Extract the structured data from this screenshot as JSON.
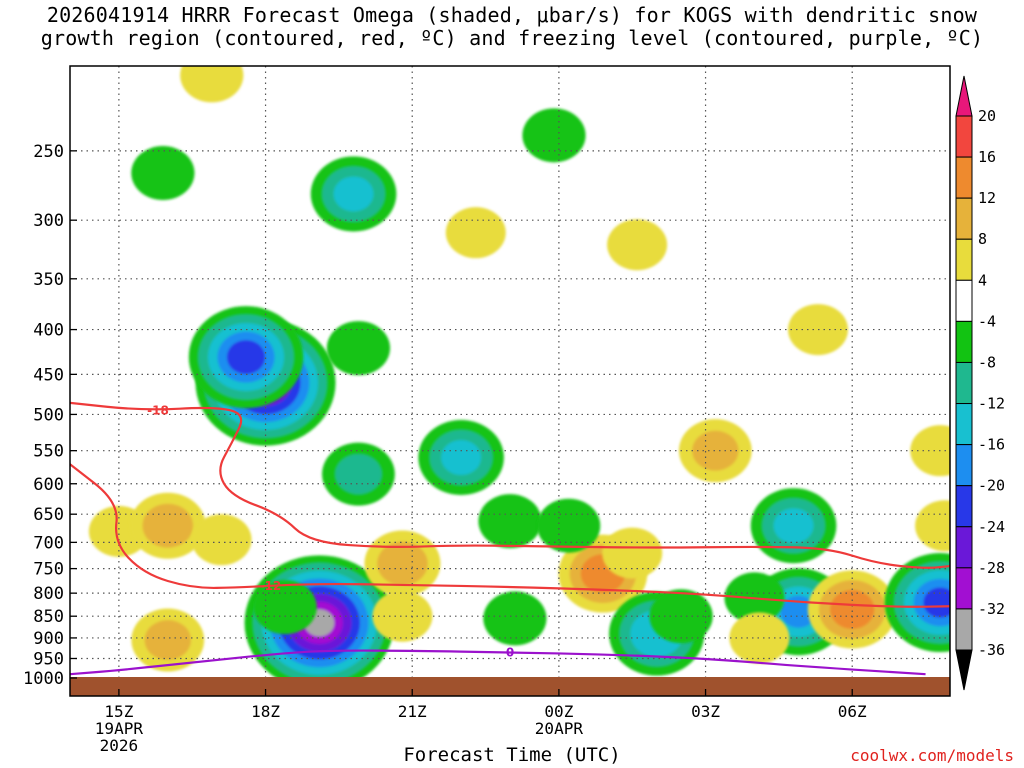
{
  "chart_data": {
    "type": "heatmap",
    "title_lines": [
      "2026041914 HRRR Forecast Omega (shaded, μbar/s) for KOGS with dendritic snow",
      "growth region (contoured, red, ºC) and freezing level (contoured, purple, ºC)"
    ],
    "xlabel": "Forecast Time (UTC)",
    "ylabel": "",
    "credit": "coolwx.com/models",
    "y_scale": "log-pressure",
    "ylim": [
      1000,
      200
    ],
    "y_ticks": [
      250,
      300,
      350,
      400,
      450,
      500,
      550,
      600,
      650,
      700,
      750,
      800,
      850,
      900,
      950,
      1000
    ],
    "xlim": [
      14,
      32
    ],
    "x_ticks": [
      {
        "x": 15,
        "label": [
          "15Z",
          "19APR",
          "2026"
        ]
      },
      {
        "x": 18,
        "label": [
          "18Z"
        ]
      },
      {
        "x": 21,
        "label": [
          "21Z"
        ]
      },
      {
        "x": 24,
        "label": [
          "00Z",
          "20APR"
        ]
      },
      {
        "x": 27,
        "label": [
          "03Z"
        ]
      },
      {
        "x": 30,
        "label": [
          "06Z"
        ]
      }
    ],
    "grid": true,
    "colorbar": {
      "labels": [
        "20",
        "16",
        "12",
        "8",
        "4",
        "-4",
        "-8",
        "-12",
        "-16",
        "-20",
        "-24",
        "-28",
        "-32",
        "-36"
      ],
      "bands": [
        {
          "from": 20,
          "to": 24,
          "color": "#e8177a"
        },
        {
          "from": 16,
          "to": 20,
          "color": "#f2463e"
        },
        {
          "from": 12,
          "to": 16,
          "color": "#ee8a2e"
        },
        {
          "from": 8,
          "to": 12,
          "color": "#e6b23a"
        },
        {
          "from": 4,
          "to": 8,
          "color": "#e8dc3c"
        },
        {
          "from": -4,
          "to": 4,
          "color": "#ffffff"
        },
        {
          "from": -8,
          "to": -4,
          "color": "#12c312"
        },
        {
          "from": -12,
          "to": -8,
          "color": "#1fb88f"
        },
        {
          "from": -16,
          "to": -12,
          "color": "#18c0d0"
        },
        {
          "from": -20,
          "to": -16,
          "color": "#1d8ef0"
        },
        {
          "from": -24,
          "to": -20,
          "color": "#2838e8"
        },
        {
          "from": -28,
          "to": -24,
          "color": "#6a18d8"
        },
        {
          "from": -32,
          "to": -28,
          "color": "#a20fd2"
        },
        {
          "from": -36,
          "to": -32,
          "color": "#a8a8a8"
        },
        {
          "from": -40,
          "to": -36,
          "color": "#000000"
        }
      ]
    },
    "omega_features": [
      {
        "x": 15.9,
        "p": 265,
        "value": -6
      },
      {
        "x": 16.9,
        "p": 205,
        "value": 6
      },
      {
        "x": 18.0,
        "p": 460,
        "value": -30
      },
      {
        "x": 17.6,
        "p": 430,
        "value": -22
      },
      {
        "x": 19.8,
        "p": 280,
        "value": -13
      },
      {
        "x": 19.9,
        "p": 420,
        "value": -6
      },
      {
        "x": 19.9,
        "p": 585,
        "value": -9
      },
      {
        "x": 22.0,
        "p": 560,
        "value": -13
      },
      {
        "x": 22.3,
        "p": 310,
        "value": 5
      },
      {
        "x": 23.9,
        "p": 240,
        "value": -6
      },
      {
        "x": 25.6,
        "p": 320,
        "value": 5
      },
      {
        "x": 27.2,
        "p": 550,
        "value": 9
      },
      {
        "x": 29.3,
        "p": 400,
        "value": 5
      },
      {
        "x": 31.8,
        "p": 550,
        "value": 5
      },
      {
        "x": 15.0,
        "p": 680,
        "value": 5
      },
      {
        "x": 16.0,
        "p": 670,
        "value": 10
      },
      {
        "x": 16.0,
        "p": 905,
        "value": 9
      },
      {
        "x": 17.1,
        "p": 695,
        "value": 5
      },
      {
        "x": 19.1,
        "p": 865,
        "value": -33
      },
      {
        "x": 18.4,
        "p": 830,
        "value": -6
      },
      {
        "x": 20.8,
        "p": 740,
        "value": 10
      },
      {
        "x": 20.8,
        "p": 850,
        "value": 5
      },
      {
        "x": 23.1,
        "p": 855,
        "value": -6
      },
      {
        "x": 23.0,
        "p": 662,
        "value": -6
      },
      {
        "x": 24.9,
        "p": 760,
        "value": 14
      },
      {
        "x": 25.5,
        "p": 720,
        "value": 5
      },
      {
        "x": 26.0,
        "p": 890,
        "value": -16
      },
      {
        "x": 26.5,
        "p": 850,
        "value": -6
      },
      {
        "x": 28.8,
        "p": 670,
        "value": -13
      },
      {
        "x": 28.9,
        "p": 840,
        "value": -17
      },
      {
        "x": 28.0,
        "p": 810,
        "value": -5
      },
      {
        "x": 30.0,
        "p": 835,
        "value": 14
      },
      {
        "x": 31.8,
        "p": 820,
        "value": -21
      },
      {
        "x": 31.9,
        "p": 670,
        "value": 5
      },
      {
        "x": 28.1,
        "p": 900,
        "value": 5
      },
      {
        "x": 24.2,
        "p": 670,
        "value": -6
      }
    ],
    "dgz_contours": [
      {
        "label": "-18",
        "points": [
          [
            14,
            485
          ],
          [
            15.5,
            495
          ],
          [
            17,
            490
          ],
          [
            17.6,
            500
          ],
          [
            17.3,
            540
          ],
          [
            17,
            580
          ],
          [
            17.3,
            620
          ],
          [
            18.3,
            650
          ],
          [
            18.9,
            700
          ],
          [
            20.5,
            710
          ],
          [
            22,
            705
          ],
          [
            24,
            708
          ],
          [
            26,
            710
          ],
          [
            28,
            708
          ],
          [
            29.5,
            710
          ],
          [
            30.5,
            740
          ],
          [
            31.5,
            750
          ],
          [
            32,
            745
          ]
        ],
        "label_at": [
          15.8,
          495
        ]
      },
      {
        "label": "-12",
        "points": [
          [
            14,
            570
          ],
          [
            15,
            630
          ],
          [
            14.9,
            700
          ],
          [
            15.5,
            760
          ],
          [
            16.5,
            790
          ],
          [
            17.5,
            788
          ],
          [
            19,
            780
          ],
          [
            21,
            783
          ],
          [
            23,
            787
          ],
          [
            25,
            793
          ],
          [
            27,
            802
          ],
          [
            29,
            820
          ],
          [
            31,
            830
          ],
          [
            32,
            828
          ]
        ],
        "label_at": [
          18.1,
          785
        ]
      }
    ],
    "freezing_level": {
      "label": "0",
      "points": [
        [
          14,
          990
        ],
        [
          15,
          980
        ],
        [
          16.5,
          960
        ],
        [
          18.5,
          935
        ],
        [
          19.5,
          930
        ],
        [
          21,
          931
        ],
        [
          23,
          935
        ],
        [
          25,
          940
        ],
        [
          27,
          950
        ],
        [
          29,
          970
        ],
        [
          31.5,
          990
        ]
      ],
      "label_at": [
        23.0,
        935
      ]
    }
  }
}
